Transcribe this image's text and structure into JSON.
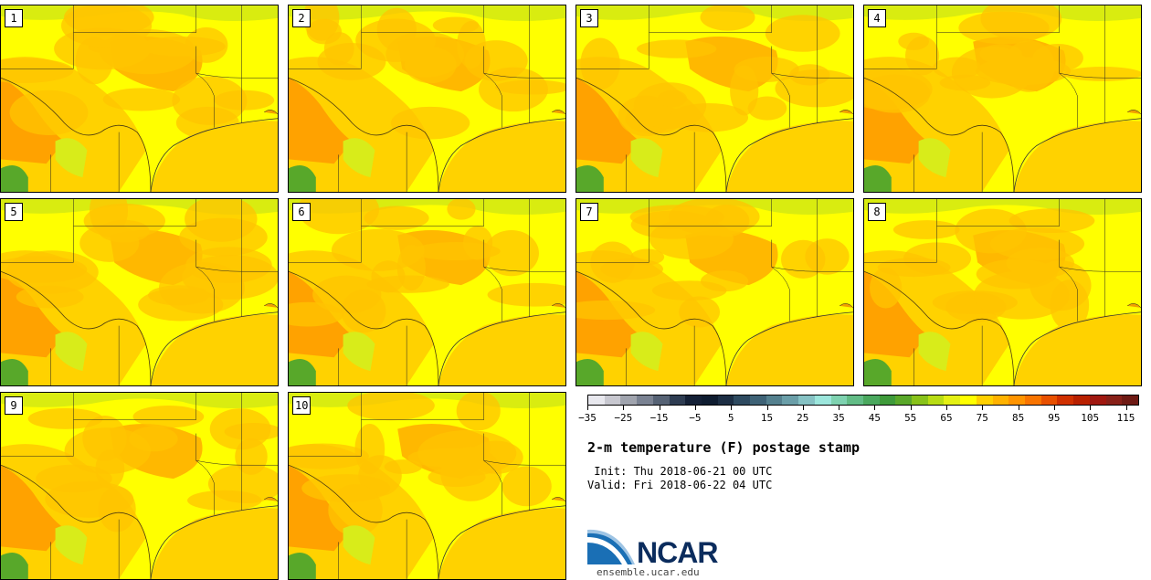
{
  "panels": [
    {
      "label": "1"
    },
    {
      "label": "2"
    },
    {
      "label": "3"
    },
    {
      "label": "4"
    },
    {
      "label": "5"
    },
    {
      "label": "6"
    },
    {
      "label": "7"
    },
    {
      "label": "8"
    },
    {
      "label": "9"
    },
    {
      "label": "10"
    }
  ],
  "colorbar": {
    "colors": [
      "#e8e8ee",
      "#c8c8d0",
      "#a0a4ae",
      "#7a8292",
      "#566274",
      "#2e3c52",
      "#142036",
      "#0e1c30",
      "#1c2e44",
      "#2e4a60",
      "#3e6276",
      "#54808e",
      "#6a9ea8",
      "#86c2c4",
      "#9ce6dc",
      "#7ed2b0",
      "#62bc86",
      "#4aa85e",
      "#3e9a3a",
      "#5aa82a",
      "#88c21a",
      "#b8dc14",
      "#e4f014",
      "#ffff00",
      "#ffd000",
      "#ffb200",
      "#ff9400",
      "#f87400",
      "#e85000",
      "#d03000",
      "#b82000",
      "#a01810",
      "#882018",
      "#6e1a14"
    ],
    "tick_labels": [
      "−35",
      "−25",
      "−15",
      "−5",
      "5",
      "15",
      "25",
      "35",
      "45",
      "55",
      "65",
      "75",
      "85",
      "95",
      "105",
      "115"
    ]
  },
  "title": "2-m temperature (F) postage stamp",
  "init": " Init: Thu 2018-06-21 00 UTC",
  "valid": "Valid: Fri 2018-06-22 04 UTC",
  "logo": {
    "text": "NCAR",
    "site": "ensemble.ucar.edu"
  }
}
